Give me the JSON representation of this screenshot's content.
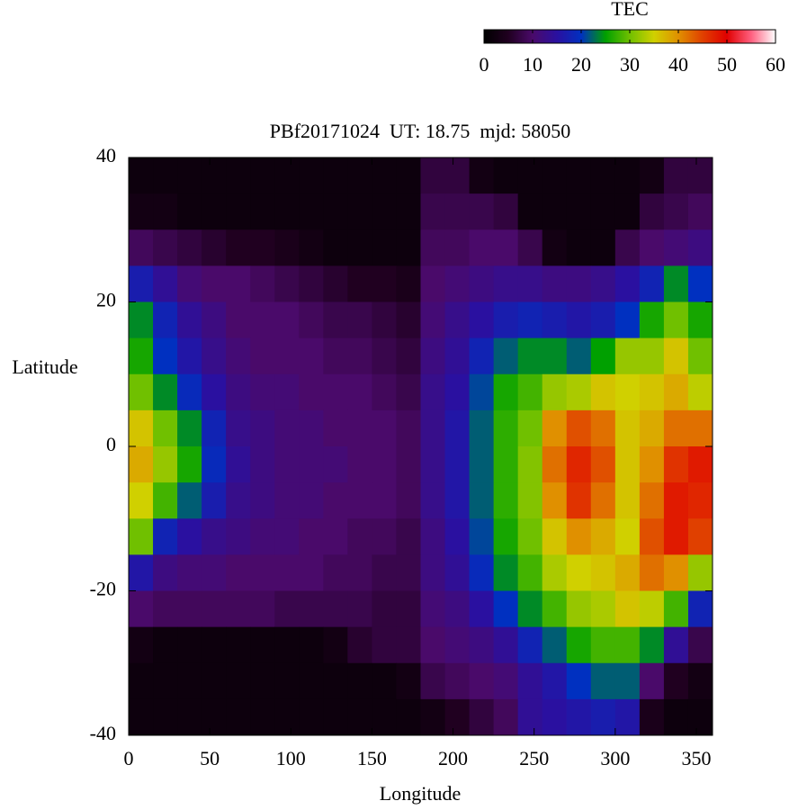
{
  "chart_data": {
    "type": "heatmap",
    "title": "PBf20171024  UT: 18.75  mjd: 58050",
    "xlabel": "Longitude",
    "ylabel": "Latitude",
    "colorbar_title": "TEC",
    "x": [
      7.5,
      22.5,
      37.5,
      52.5,
      67.5,
      82.5,
      97.5,
      112.5,
      127.5,
      142.5,
      157.5,
      172.5,
      187.5,
      202.5,
      217.5,
      232.5,
      247.5,
      262.5,
      277.5,
      292.5,
      307.5,
      322.5,
      337.5,
      352.5
    ],
    "y": [
      37.5,
      32.5,
      27.5,
      22.5,
      17.5,
      12.5,
      7.5,
      2.5,
      -2.5,
      -7.5,
      -12.5,
      -17.5,
      -22.5,
      -27.5,
      -32.5,
      -37.5
    ],
    "values": [
      [
        2,
        2,
        2,
        2,
        2,
        2,
        2,
        2,
        2,
        2,
        2,
        2,
        7,
        7,
        3,
        2,
        2,
        2,
        2,
        2,
        2,
        3,
        7,
        7
      ],
      [
        3,
        3,
        2,
        2,
        2,
        2,
        2,
        2,
        2,
        2,
        2,
        2,
        8,
        8,
        8,
        7,
        2,
        2,
        2,
        2,
        2,
        7,
        8,
        9
      ],
      [
        9,
        8,
        7,
        6,
        5,
        5,
        4,
        3,
        2,
        2,
        2,
        2,
        9,
        9,
        10,
        10,
        8,
        3,
        2,
        2,
        8,
        10,
        11,
        12
      ],
      [
        17,
        14,
        11,
        10,
        10,
        9,
        8,
        7,
        6,
        5,
        5,
        4,
        10,
        11,
        12,
        13,
        13,
        12,
        12,
        13,
        15,
        18,
        24,
        20
      ],
      [
        24,
        18,
        14,
        12,
        10,
        10,
        10,
        9,
        8,
        8,
        7,
        6,
        11,
        13,
        15,
        17,
        18,
        17,
        16,
        17,
        20,
        26,
        30,
        26
      ],
      [
        26,
        20,
        16,
        13,
        11,
        10,
        10,
        10,
        9,
        9,
        8,
        7,
        12,
        14,
        18,
        22,
        24,
        24,
        22,
        25,
        32,
        32,
        36,
        30
      ],
      [
        30,
        24,
        19,
        15,
        12,
        11,
        11,
        10,
        10,
        10,
        9,
        8,
        13,
        15,
        21,
        26,
        28,
        32,
        33,
        36,
        35,
        36,
        38,
        34
      ],
      [
        36,
        30,
        24,
        18,
        13,
        12,
        11,
        11,
        10,
        10,
        10,
        9,
        13,
        16,
        22,
        27,
        30,
        40,
        44,
        42,
        36,
        38,
        42,
        42
      ],
      [
        38,
        32,
        26,
        19,
        14,
        12,
        11,
        11,
        11,
        10,
        10,
        9,
        13,
        16,
        22,
        27,
        31,
        42,
        47,
        44,
        36,
        40,
        46,
        48
      ],
      [
        35,
        28,
        22,
        17,
        13,
        12,
        11,
        11,
        10,
        10,
        10,
        9,
        13,
        16,
        22,
        27,
        31,
        40,
        46,
        42,
        36,
        42,
        48,
        47
      ],
      [
        30,
        18,
        15,
        13,
        12,
        11,
        11,
        10,
        10,
        9,
        9,
        8,
        12,
        15,
        21,
        26,
        30,
        36,
        40,
        38,
        35,
        44,
        48,
        45
      ],
      [
        16,
        12,
        11,
        11,
        10,
        10,
        10,
        10,
        9,
        9,
        8,
        8,
        12,
        14,
        19,
        24,
        28,
        33,
        35,
        36,
        38,
        42,
        40,
        32
      ],
      [
        10,
        9,
        9,
        9,
        9,
        9,
        8,
        8,
        8,
        8,
        7,
        7,
        11,
        12,
        15,
        20,
        24,
        28,
        32,
        33,
        36,
        34,
        28,
        18
      ],
      [
        3,
        2,
        2,
        2,
        2,
        2,
        2,
        2,
        3,
        6,
        7,
        7,
        10,
        11,
        12,
        14,
        18,
        22,
        26,
        28,
        28,
        24,
        14,
        8
      ],
      [
        2,
        2,
        2,
        2,
        2,
        2,
        2,
        2,
        2,
        2,
        2,
        3,
        8,
        9,
        10,
        11,
        14,
        16,
        20,
        22,
        22,
        10,
        5,
        3
      ],
      [
        2,
        2,
        2,
        2,
        2,
        2,
        2,
        2,
        2,
        2,
        2,
        2,
        3,
        5,
        7,
        9,
        14,
        15,
        16,
        17,
        16,
        4,
        2,
        2
      ]
    ],
    "xlim": [
      0,
      360
    ],
    "xticks": [
      0,
      50,
      100,
      150,
      200,
      250,
      300,
      350
    ],
    "ylim": [
      -40,
      40
    ],
    "yticks": [
      -40,
      -20,
      0,
      20,
      40
    ],
    "zlim": [
      0,
      60
    ],
    "zticks": [
      0,
      10,
      20,
      30,
      40,
      50,
      60
    ],
    "colormap": [
      "#000000",
      "#200020",
      "#4a0a6a",
      "#2a10a0",
      "#0030c0",
      "#00a000",
      "#70c000",
      "#d0d000",
      "#e09000",
      "#e04000",
      "#e00000",
      "#ff6080",
      "#ffffff"
    ]
  }
}
